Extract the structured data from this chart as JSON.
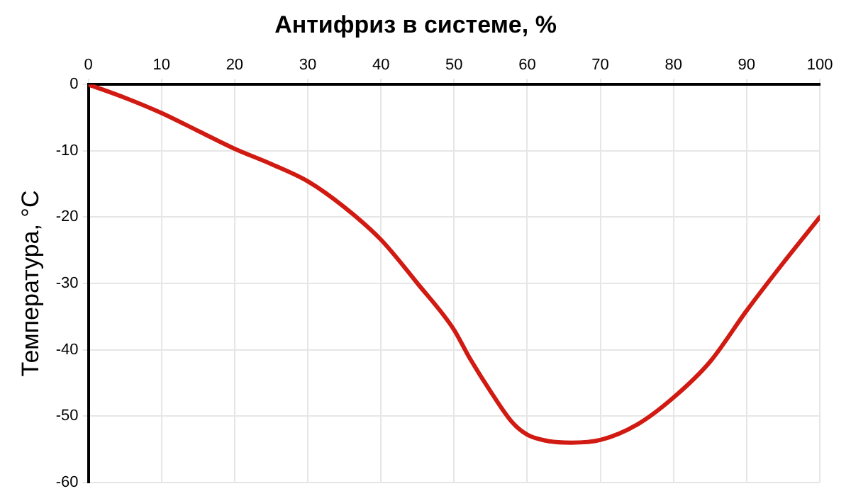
{
  "chart_data": {
    "type": "line",
    "title": "Антифриз в системе, %",
    "ylabel": "Температура, °C",
    "x": [
      0,
      5,
      10,
      15,
      20,
      25,
      30,
      35,
      40,
      45,
      50,
      52,
      55,
      58,
      60,
      63,
      66,
      70,
      75,
      80,
      85,
      90,
      95,
      100
    ],
    "series": [
      {
        "color": "#d01a12",
        "values": [
          0,
          -2,
          -4.3,
          -7,
          -9.7,
          -12,
          -14.6,
          -18.5,
          -23.4,
          -30,
          -37,
          -41,
          -46.3,
          -51,
          -52.8,
          -53.8,
          -54,
          -53.6,
          -51.3,
          -47.2,
          -41.8,
          -34.1,
          -26.9,
          -20
        ]
      }
    ],
    "xlim": [
      0,
      100
    ],
    "xticks": [
      0,
      10,
      20,
      30,
      40,
      50,
      60,
      70,
      80,
      90,
      100
    ],
    "ylim": [
      -60,
      0
    ],
    "yticks": [
      -60,
      -50,
      -40,
      -30,
      -20,
      -10,
      0
    ],
    "grid": true,
    "legend": false,
    "marker": "none",
    "line_style": "solid"
  }
}
